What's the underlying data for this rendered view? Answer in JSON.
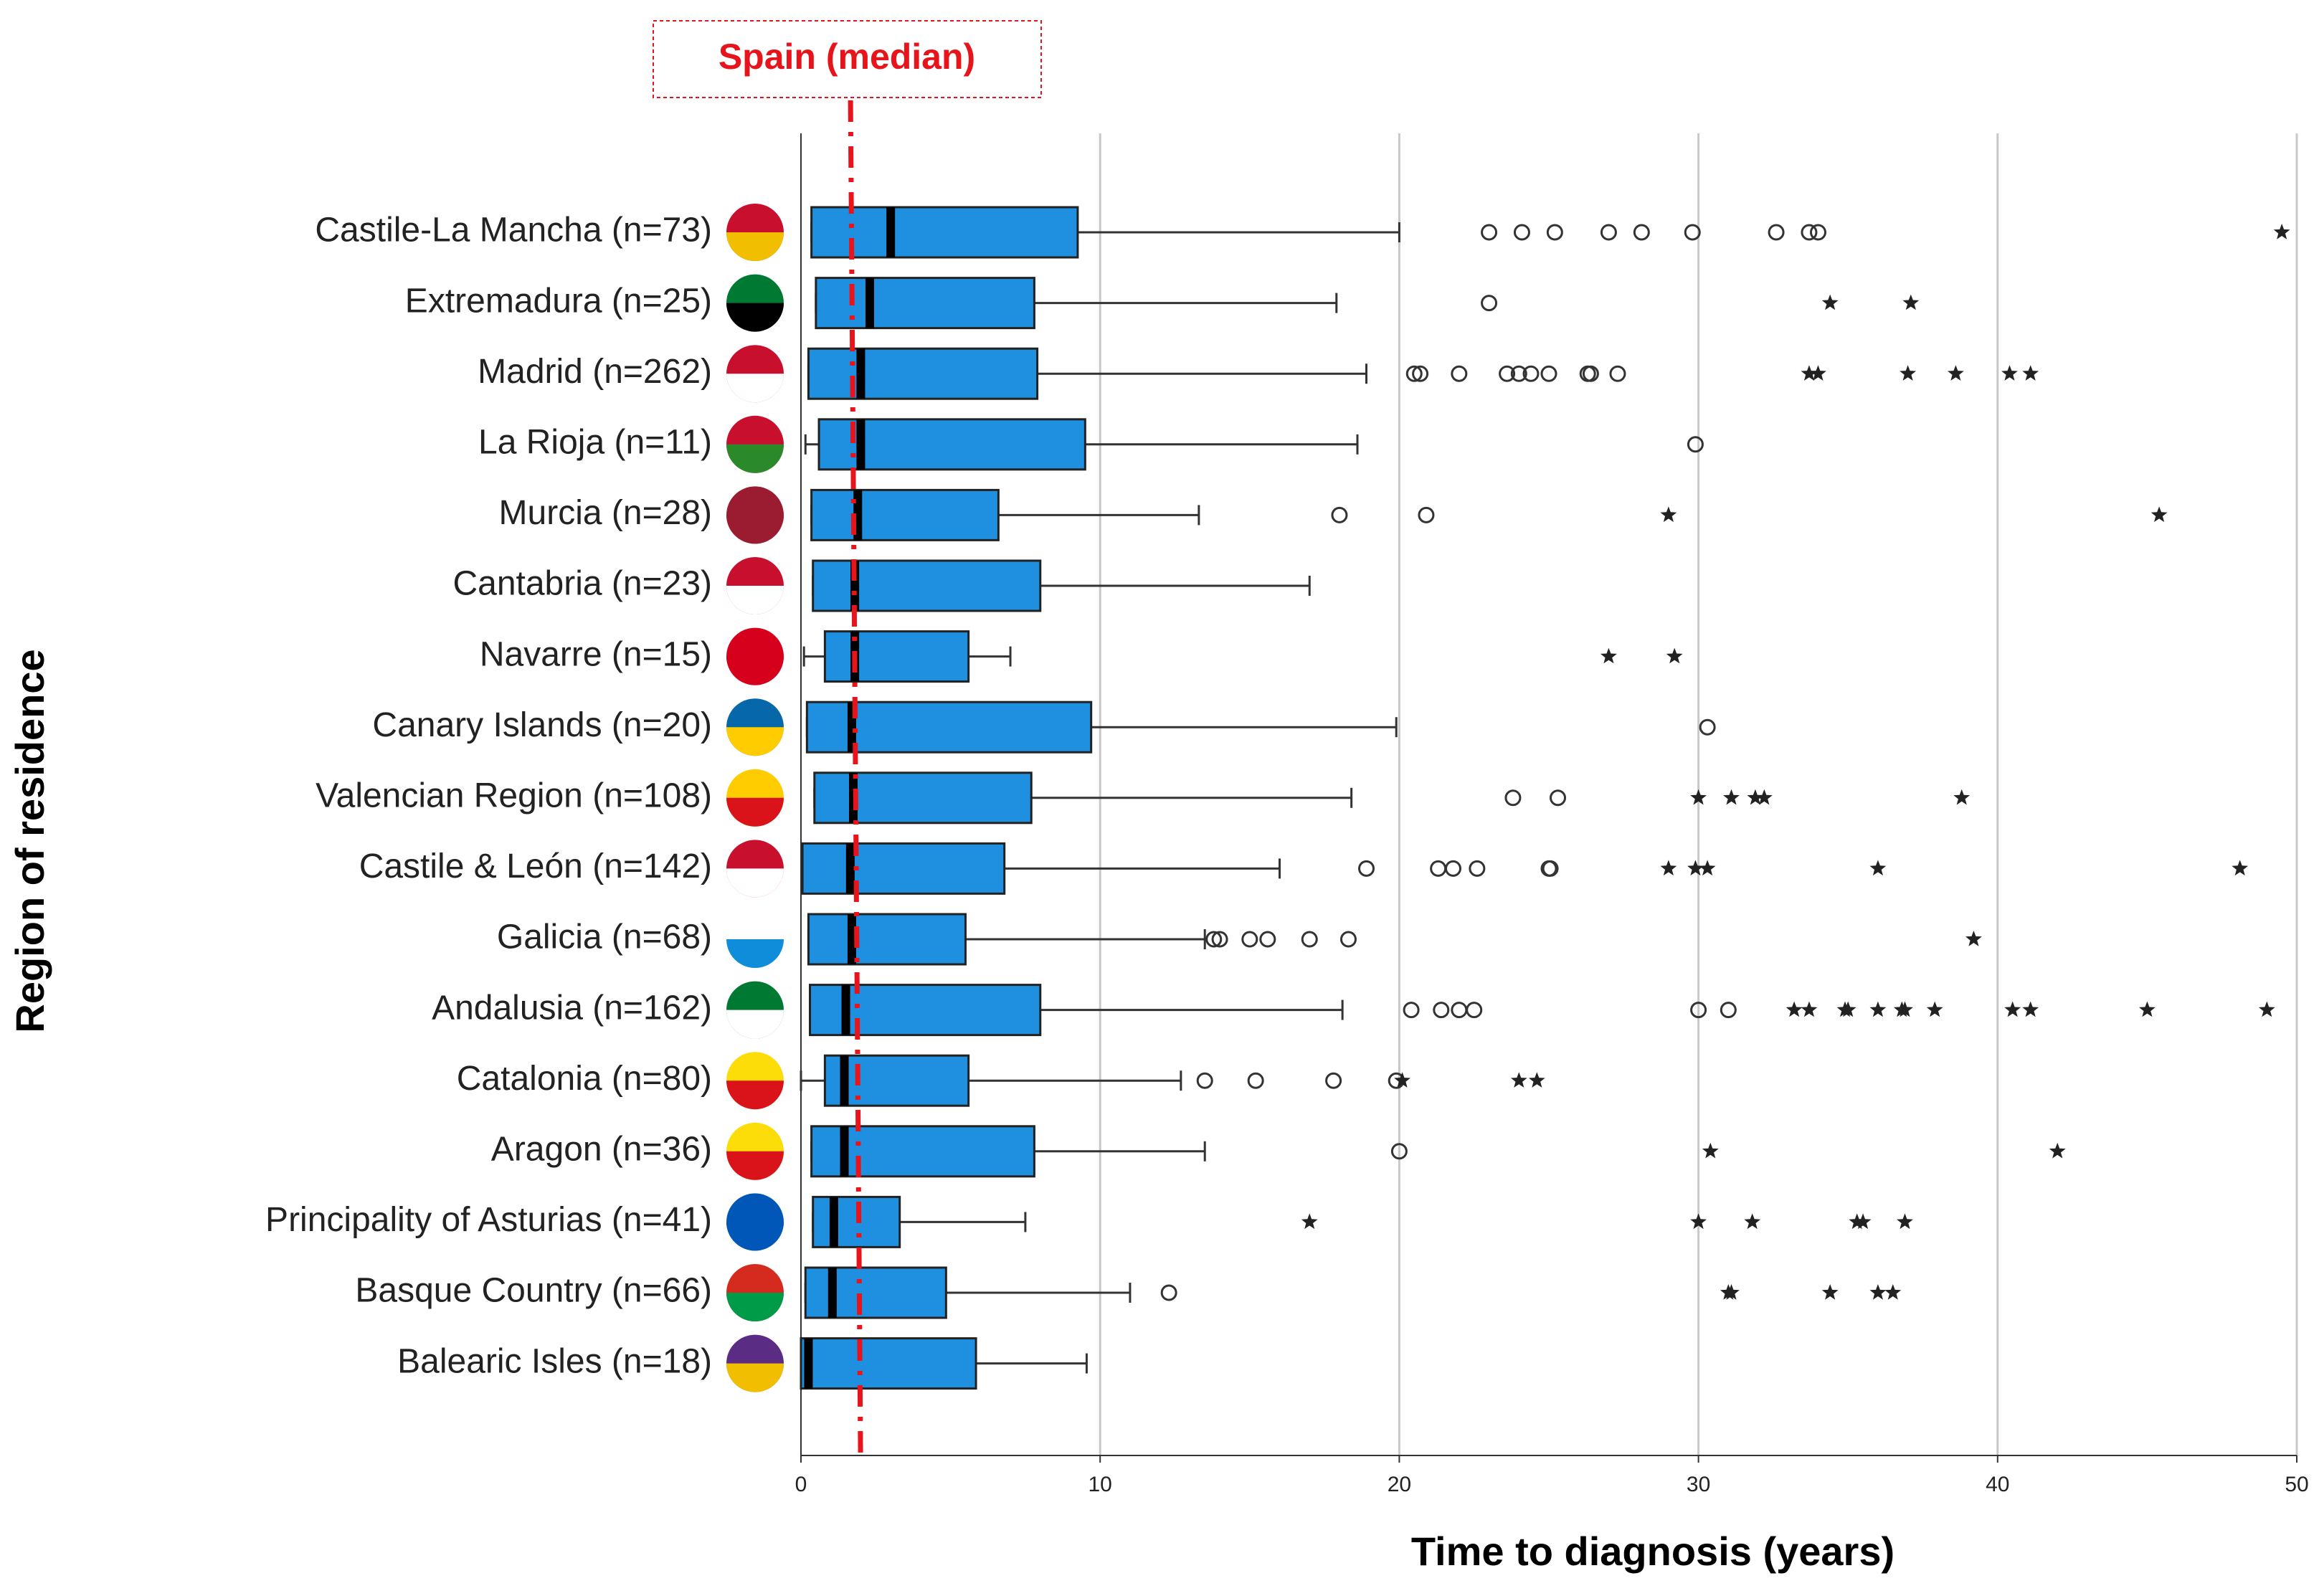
{
  "chart_data": {
    "type": "box",
    "xlabel": "Time to diagnosis (years)",
    "ylabel": "Region of residence",
    "annotation": "Spain (median)",
    "spain_median": 1.8,
    "reference_color": "#e8141c",
    "color": "#1f8fe0",
    "grid": true,
    "xlim": [
      0,
      50
    ],
    "xticks": [
      0,
      10,
      20,
      30,
      40,
      50
    ],
    "categories": [
      "Castile-La Mancha (n=73)",
      "Extremadura (n=25)",
      "Madrid (n=262)",
      "La Rioja (n=11)",
      "Murcia (n=28)",
      "Cantabria (n=23)",
      "Navarre (n=15)",
      "Canary Islands (n=20)",
      "Valencian Region (n=108)",
      "Castile & León (n=142)",
      "Galicia (n=68)",
      "Andalusia (n=162)",
      "Catalonia (n=80)",
      "Aragon (n=36)",
      "Principality of Asturias (n=41)",
      "Basque Country (n=66)",
      "Balearic Isles (n=18)"
    ],
    "boxes": [
      {
        "whisker_low": 0.35,
        "q1": 0.35,
        "median": 3.0,
        "q3": 9.25,
        "whisker_high": 20,
        "outliers": [
          23,
          24.1,
          25.2,
          27,
          28.1,
          29.8,
          32.6,
          33.7,
          34
        ],
        "extremes": [
          49.5
        ]
      },
      {
        "whisker_low": 0.5,
        "q1": 0.5,
        "median": 2.3,
        "q3": 7.8,
        "whisker_high": 17.9,
        "outliers": [
          23
        ],
        "extremes": [
          34.4,
          37.1
        ]
      },
      {
        "whisker_low": 0.25,
        "q1": 0.25,
        "median": 2.0,
        "q3": 7.9,
        "whisker_high": 18.9,
        "outliers": [
          20.5,
          20.7,
          22,
          23.6,
          24,
          24.4,
          25,
          26.3,
          26.4,
          27.3
        ],
        "extremes": [
          33.7,
          34,
          37,
          38.6,
          40.4,
          41.1
        ]
      },
      {
        "whisker_low": 0.15,
        "q1": 0.6,
        "median": 2.0,
        "q3": 9.5,
        "whisker_high": 18.6,
        "outliers": [
          29.9
        ],
        "extremes": []
      },
      {
        "whisker_low": 0.35,
        "q1": 0.35,
        "median": 1.9,
        "q3": 6.6,
        "whisker_high": 13.3,
        "outliers": [
          18,
          20.9
        ],
        "extremes": [
          29,
          45.4
        ]
      },
      {
        "whisker_low": 0.4,
        "q1": 0.4,
        "median": 1.8,
        "q3": 8.0,
        "whisker_high": 17,
        "outliers": [],
        "extremes": []
      },
      {
        "whisker_low": 0.1,
        "q1": 0.8,
        "median": 1.8,
        "q3": 5.6,
        "whisker_high": 7,
        "outliers": [],
        "extremes": [
          27,
          29.2
        ]
      },
      {
        "whisker_low": 0.2,
        "q1": 0.2,
        "median": 1.7,
        "q3": 9.7,
        "whisker_high": 19.9,
        "outliers": [
          30.3
        ],
        "extremes": []
      },
      {
        "whisker_low": 0.45,
        "q1": 0.45,
        "median": 1.75,
        "q3": 7.7,
        "whisker_high": 18.4,
        "outliers": [
          23.8,
          25.3
        ],
        "extremes": [
          30,
          31.1,
          31.9,
          32.2,
          38.8
        ]
      },
      {
        "whisker_low": 0.05,
        "q1": 0.05,
        "median": 1.65,
        "q3": 6.8,
        "whisker_high": 16,
        "outliers": [
          18.9,
          21.3,
          21.8,
          22.6,
          25,
          25.05
        ],
        "extremes": [
          29,
          29.9,
          30.3,
          36,
          48.1
        ]
      },
      {
        "whisker_low": 0.25,
        "q1": 0.25,
        "median": 1.7,
        "q3": 5.5,
        "whisker_high": 13.5,
        "outliers": [
          13.8,
          14,
          15,
          15.6,
          17,
          18.3
        ],
        "extremes": [
          39.2
        ]
      },
      {
        "whisker_low": 0.3,
        "q1": 0.3,
        "median": 1.5,
        "q3": 8.0,
        "whisker_high": 18.1,
        "outliers": [
          20.4,
          21.4,
          22,
          22.5,
          30,
          31
        ],
        "extremes": [
          33.2,
          33.7,
          34.9,
          35,
          36,
          36.8,
          36.9,
          37.9,
          40.5,
          41.1,
          45,
          49
        ]
      },
      {
        "whisker_low": 0,
        "q1": 0.8,
        "median": 1.45,
        "q3": 5.6,
        "whisker_high": 12.7,
        "outliers": [
          13.5,
          15.2,
          17.8,
          19.9
        ],
        "extremes": [
          20.1,
          24,
          24.6
        ]
      },
      {
        "whisker_low": 0.35,
        "q1": 0.35,
        "median": 1.45,
        "q3": 7.8,
        "whisker_high": 13.5,
        "outliers": [
          20
        ],
        "extremes": [
          30.4,
          42
        ]
      },
      {
        "whisker_low": 0.4,
        "q1": 0.4,
        "median": 1.1,
        "q3": 3.3,
        "whisker_high": 7.5,
        "outliers": [],
        "extremes": [
          17,
          30,
          31.8,
          35.3,
          35.5,
          36.9
        ]
      },
      {
        "whisker_low": 0.15,
        "q1": 0.15,
        "median": 1.05,
        "q3": 4.85,
        "whisker_high": 11,
        "outliers": [
          12.3
        ],
        "extremes": [
          31,
          31.1,
          34.4,
          36,
          36.5
        ]
      },
      {
        "whisker_low": 0,
        "q1": 0,
        "median": 0.25,
        "q3": 5.85,
        "whisker_high": 9.55,
        "outliers": [],
        "extremes": []
      }
    ]
  }
}
